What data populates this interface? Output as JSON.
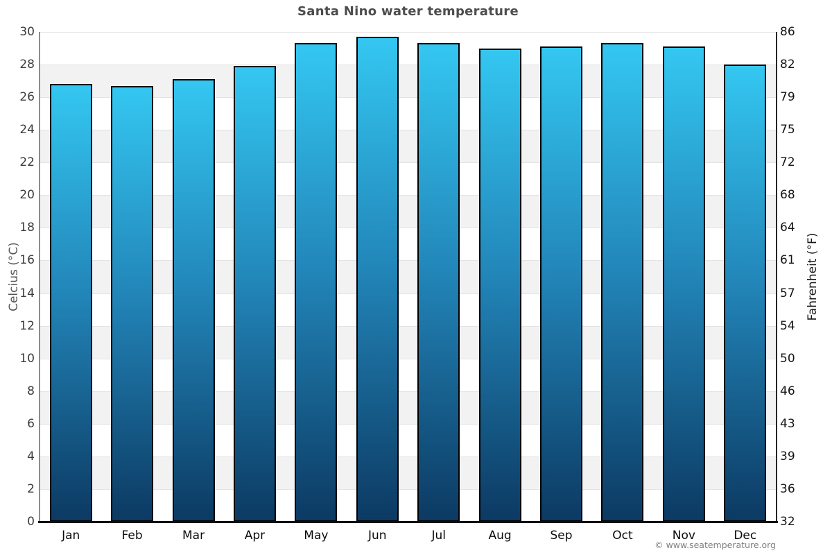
{
  "title": "Santa Nino water temperature",
  "copyright": "© www.seatemperature.org",
  "chart_data": {
    "type": "bar",
    "title": "Santa Nino water temperature",
    "categories": [
      "Jan",
      "Feb",
      "Mar",
      "Apr",
      "May",
      "Jun",
      "Jul",
      "Aug",
      "Sep",
      "Oct",
      "Nov",
      "Dec"
    ],
    "values": [
      26.8,
      26.7,
      27.1,
      27.9,
      29.3,
      29.7,
      29.3,
      29.0,
      29.1,
      29.3,
      29.1,
      28.0
    ],
    "xlabel": "",
    "ylabel_left": "Celcius (°C)",
    "ylabel_right": "Fahrenheit (°F)",
    "ylim": [
      0,
      30
    ],
    "celsius_ticks": [
      0,
      2,
      4,
      6,
      8,
      10,
      12,
      14,
      16,
      18,
      20,
      22,
      24,
      26,
      28,
      30
    ],
    "fahrenheit_ticks": [
      32,
      36,
      39,
      43,
      46,
      50,
      54,
      57,
      61,
      64,
      68,
      72,
      75,
      79,
      82,
      86
    ],
    "grid": "horizontal-bands",
    "legend": "none",
    "colors": {
      "bar_gradient_top": "#34c7f1",
      "bar_gradient_mid": "#2285b8",
      "bar_gradient_bottom": "#0c3a63",
      "bar_border": "#000000",
      "band_light": "#ffffff",
      "band_dark": "#f2f2f2",
      "gridline": "#e3e3e3",
      "title_color": "#4d4d4d"
    }
  }
}
